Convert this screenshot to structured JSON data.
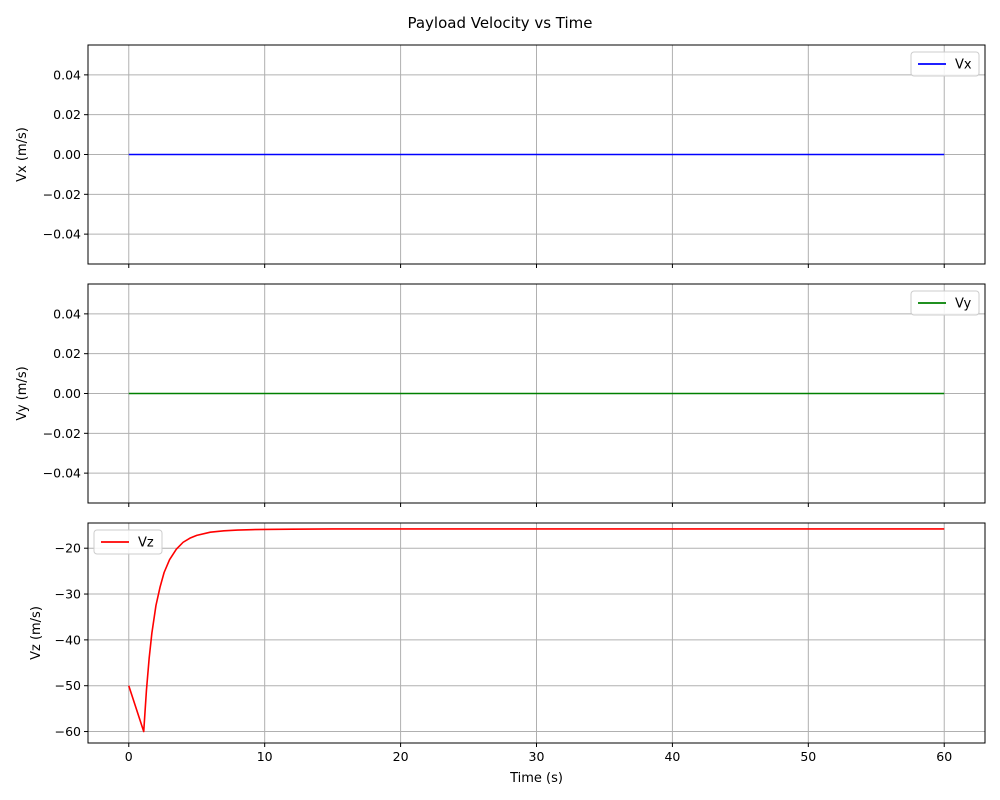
{
  "title": "Payload Velocity vs Time",
  "chart_data": [
    {
      "type": "line",
      "ylabel": "Vx (m/s)",
      "xlabel": "",
      "xlim": [
        -3,
        63
      ],
      "ylim": [
        -0.055,
        0.055
      ],
      "xticks": [
        0,
        10,
        20,
        30,
        40,
        50,
        60
      ],
      "show_x_tick_labels": false,
      "yticks": [
        -0.04,
        -0.02,
        0.0,
        0.02,
        0.04
      ],
      "ytick_labels": [
        "−0.04",
        "−0.02",
        "0.00",
        "0.02",
        "0.04"
      ],
      "grid": true,
      "legend": "upper right",
      "series": [
        {
          "name": "Vx",
          "color": "#0000ff",
          "x": [
            0,
            60
          ],
          "y": [
            0,
            0
          ]
        }
      ]
    },
    {
      "type": "line",
      "ylabel": "Vy (m/s)",
      "xlabel": "",
      "xlim": [
        -3,
        63
      ],
      "ylim": [
        -0.055,
        0.055
      ],
      "xticks": [
        0,
        10,
        20,
        30,
        40,
        50,
        60
      ],
      "show_x_tick_labels": false,
      "yticks": [
        -0.04,
        -0.02,
        0.0,
        0.02,
        0.04
      ],
      "ytick_labels": [
        "−0.04",
        "−0.02",
        "0.00",
        "0.02",
        "0.04"
      ],
      "grid": true,
      "legend": "upper right",
      "series": [
        {
          "name": "Vy",
          "color": "#008000",
          "x": [
            0,
            60
          ],
          "y": [
            0,
            0
          ]
        }
      ]
    },
    {
      "type": "line",
      "ylabel": "Vz (m/s)",
      "xlabel": "Time (s)",
      "xlim": [
        -3,
        63
      ],
      "ylim": [
        -62.5,
        -14.5
      ],
      "xticks": [
        0,
        10,
        20,
        30,
        40,
        50,
        60
      ],
      "xtick_labels": [
        "0",
        "10",
        "20",
        "30",
        "40",
        "50",
        "60"
      ],
      "show_x_tick_labels": true,
      "yticks": [
        -60,
        -50,
        -40,
        -30,
        -20
      ],
      "ytick_labels": [
        "−60",
        "−50",
        "−40",
        "−30",
        "−20"
      ],
      "grid": true,
      "legend": "upper left",
      "series": [
        {
          "name": "Vz",
          "color": "#ff0000",
          "x": [
            0,
            1.1,
            1.3,
            1.5,
            1.7,
            2.0,
            2.3,
            2.6,
            3.0,
            3.5,
            4.0,
            4.5,
            5.0,
            6.0,
            7.0,
            8.0,
            9.0,
            10.0,
            12.0,
            15.0,
            20.0,
            30.0,
            40.0,
            50.0,
            60.0
          ],
          "y": [
            -50.0,
            -60.0,
            -51.0,
            -44.0,
            -38.5,
            -32.5,
            -28.5,
            -25.3,
            -22.5,
            -20.2,
            -18.7,
            -17.8,
            -17.2,
            -16.5,
            -16.2,
            -16.05,
            -15.95,
            -15.9,
            -15.85,
            -15.8,
            -15.8,
            -15.8,
            -15.8,
            -15.8,
            -15.8
          ]
        }
      ]
    }
  ]
}
